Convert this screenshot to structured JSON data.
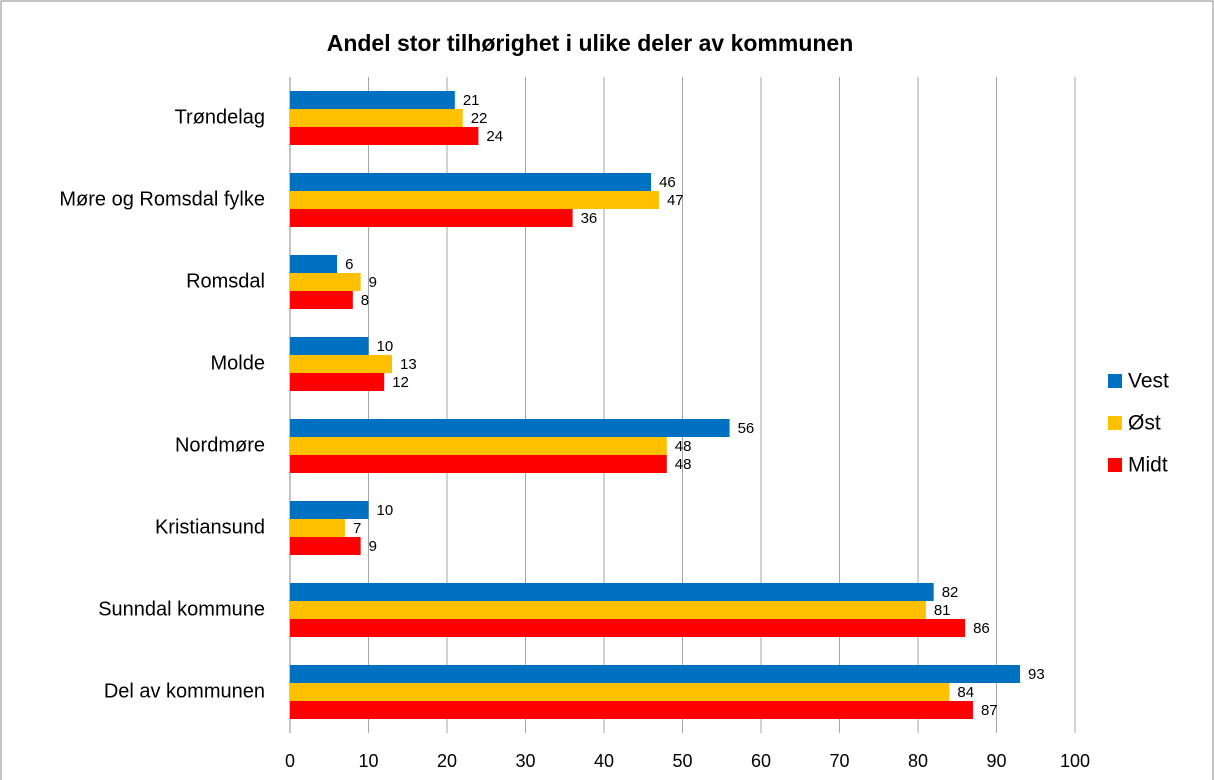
{
  "chart_data": {
    "type": "bar",
    "orientation": "horizontal",
    "title": "Andel stor tilhørighet i ulike deler av kommunen",
    "categories": [
      "Trøndelag",
      "Møre og Romsdal fylke",
      "Romsdal",
      "Molde",
      "Nordmøre",
      "Kristiansund",
      "Sunndal kommune",
      "Del av kommunen"
    ],
    "series": [
      {
        "name": "Vest",
        "color": "#0070c0",
        "values": [
          21,
          46,
          6,
          10,
          56,
          10,
          82,
          93
        ]
      },
      {
        "name": "Øst",
        "color": "#ffc000",
        "values": [
          22,
          47,
          9,
          13,
          48,
          7,
          81,
          84
        ]
      },
      {
        "name": "Midt",
        "color": "#ff0000",
        "values": [
          24,
          36,
          8,
          12,
          48,
          9,
          86,
          87
        ]
      }
    ],
    "xlim": [
      0,
      100
    ],
    "xticks": [
      0,
      10,
      20,
      30,
      40,
      50,
      60,
      70,
      80,
      90,
      100
    ],
    "grid": true,
    "legend": "right"
  }
}
